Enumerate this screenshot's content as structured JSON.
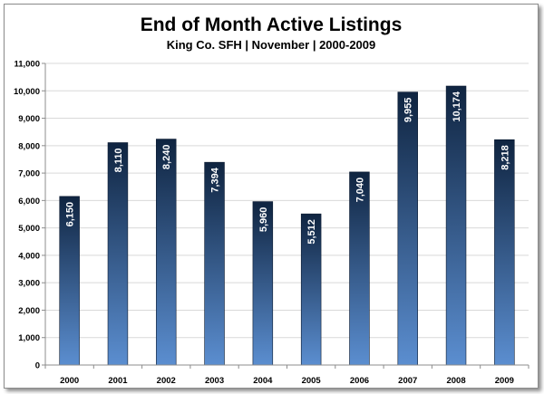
{
  "chart_data": {
    "type": "bar",
    "title": "End of Month Active Listings",
    "subtitle": "King Co. SFH | November | 2000-2009",
    "categories": [
      "2000",
      "2001",
      "2002",
      "2003",
      "2004",
      "2005",
      "2006",
      "2007",
      "2008",
      "2009"
    ],
    "values": [
      6150,
      8110,
      8240,
      7394,
      5960,
      5512,
      7040,
      9955,
      10174,
      8218
    ],
    "data_labels": [
      "6,150",
      "8,110",
      "8,240",
      "7,394",
      "5,960",
      "5,512",
      "7,040",
      "9,955",
      "10,174",
      "8,218"
    ],
    "ylim": [
      0,
      11000
    ],
    "yticks": [
      0,
      1000,
      2000,
      3000,
      4000,
      5000,
      6000,
      7000,
      8000,
      9000,
      10000,
      11000
    ],
    "ytick_labels": [
      "0",
      "1,000",
      "2,000",
      "3,000",
      "4,000",
      "5,000",
      "6,000",
      "7,000",
      "8,000",
      "9,000",
      "10,000",
      "11,000"
    ],
    "grid": true,
    "legend": "none",
    "bar_color_top": "#0f2440",
    "bar_color_bottom": "#5b8ed0"
  }
}
